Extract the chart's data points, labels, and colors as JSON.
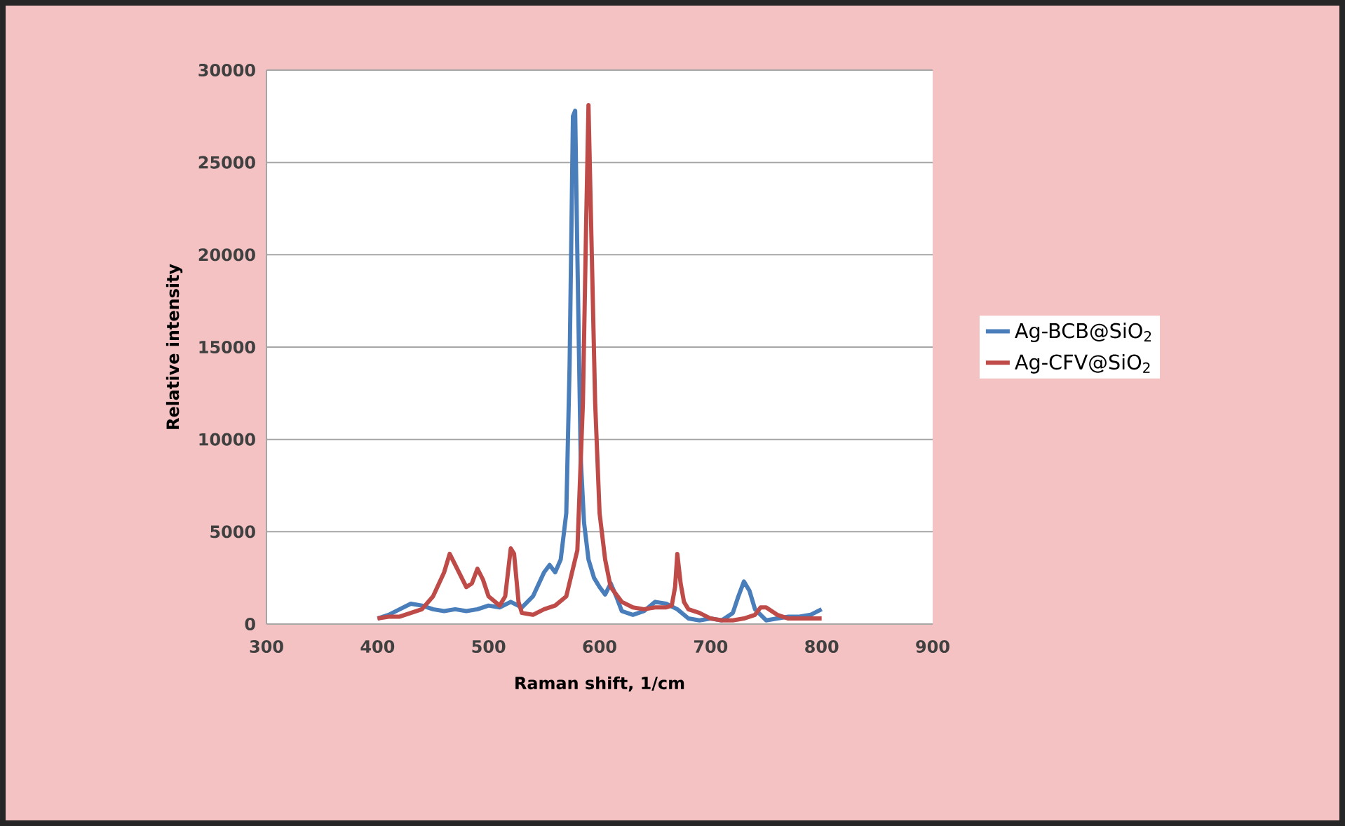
{
  "chart_data": {
    "type": "line",
    "xlabel": "Raman shift, 1/cm",
    "ylabel": "Relative intensity",
    "xlim": [
      300,
      900
    ],
    "xticks": [
      300,
      400,
      500,
      600,
      700,
      800,
      900
    ],
    "ylim": [
      0,
      30000
    ],
    "yticks": [
      0,
      5000,
      10000,
      15000,
      20000,
      25000,
      30000
    ],
    "grid": "y",
    "legend": "right",
    "series": [
      {
        "name": "Ag-BCB@SiO$_{2}$",
        "color": "#4a7ebb",
        "x": [
          400,
          410,
          420,
          430,
          440,
          450,
          460,
          470,
          480,
          490,
          500,
          510,
          520,
          530,
          540,
          550,
          555,
          560,
          565,
          570,
          573,
          576,
          578,
          580,
          583,
          586,
          590,
          595,
          600,
          605,
          610,
          615,
          620,
          630,
          640,
          650,
          660,
          670,
          680,
          690,
          700,
          710,
          720,
          725,
          730,
          735,
          740,
          750,
          760,
          770,
          780,
          790,
          800
        ],
        "values": [
          300,
          500,
          800,
          1100,
          1000,
          800,
          700,
          800,
          700,
          800,
          1000,
          900,
          1200,
          900,
          1500,
          2800,
          3200,
          2800,
          3500,
          6000,
          14000,
          27500,
          27800,
          20000,
          9000,
          5500,
          3500,
          2500,
          2000,
          1600,
          2200,
          1500,
          700,
          500,
          700,
          1200,
          1100,
          800,
          300,
          200,
          300,
          200,
          600,
          1500,
          2300,
          1800,
          800,
          200,
          300,
          400,
          400,
          500,
          800
        ]
      },
      {
        "name": "Ag-CFV@SiO$_{2}$",
        "color": "#be4b48",
        "x": [
          400,
          410,
          420,
          430,
          440,
          450,
          460,
          465,
          470,
          480,
          485,
          490,
          495,
          500,
          510,
          515,
          520,
          523,
          527,
          530,
          540,
          550,
          560,
          570,
          580,
          585,
          588,
          590,
          593,
          596,
          600,
          605,
          610,
          620,
          630,
          640,
          650,
          660,
          665,
          668,
          670,
          673,
          676,
          680,
          690,
          700,
          710,
          720,
          730,
          740,
          745,
          750,
          760,
          770,
          780,
          790,
          800
        ],
        "values": [
          300,
          400,
          400,
          600,
          800,
          1500,
          2800,
          3800,
          3200,
          2000,
          2200,
          3000,
          2400,
          1500,
          1000,
          1500,
          4100,
          3800,
          1200,
          600,
          500,
          800,
          1000,
          1500,
          4000,
          12000,
          22000,
          28100,
          20000,
          12000,
          6000,
          3500,
          2000,
          1200,
          900,
          800,
          900,
          900,
          1000,
          2000,
          3800,
          2200,
          1200,
          800,
          600,
          300,
          200,
          200,
          300,
          500,
          900,
          900,
          500,
          300,
          300,
          300,
          300
        ]
      }
    ]
  }
}
